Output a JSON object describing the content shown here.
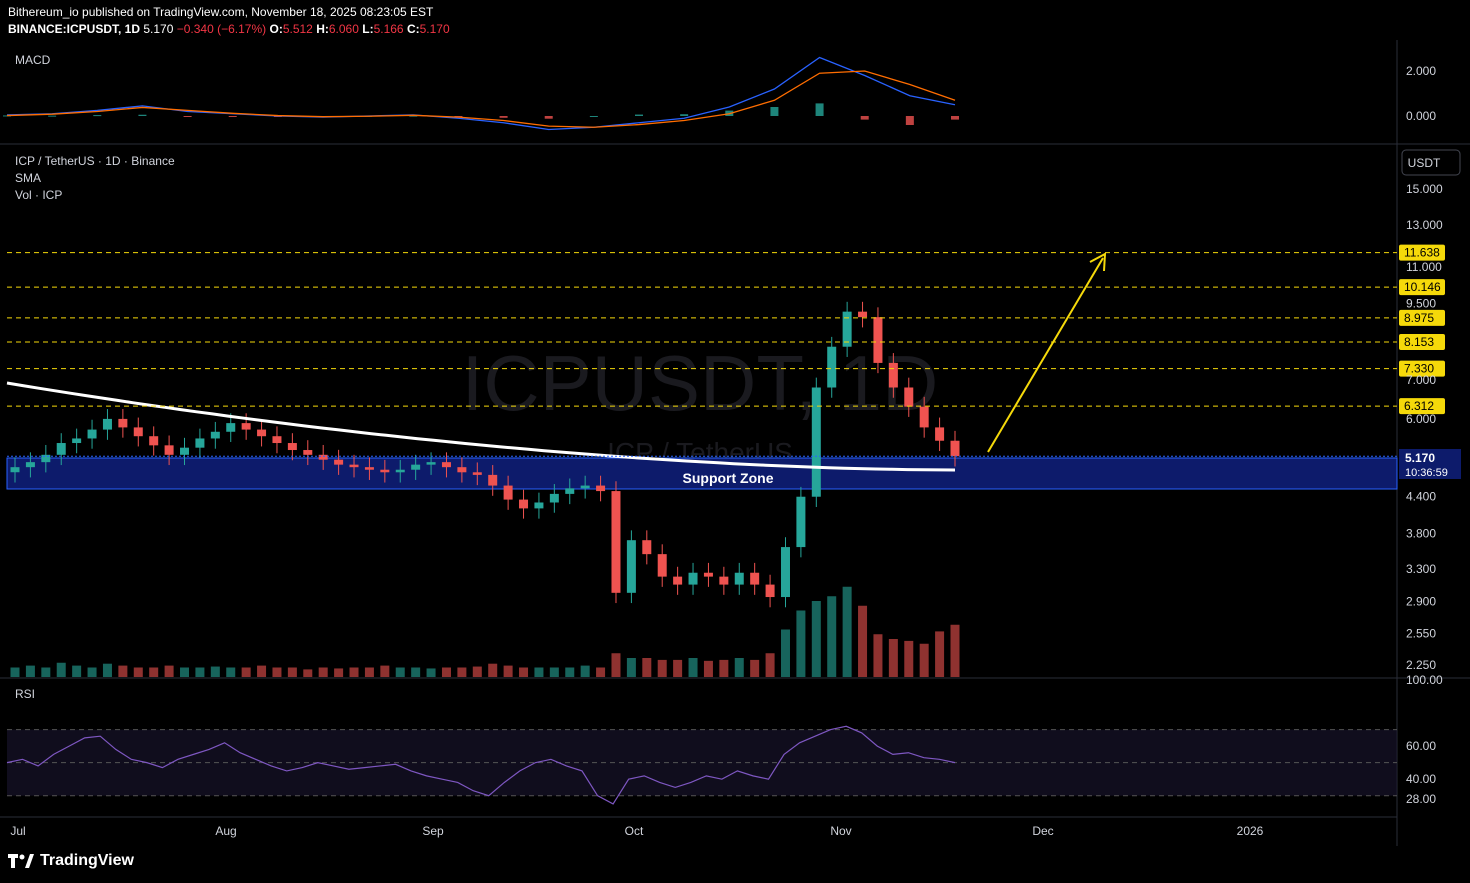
{
  "header": {
    "line1": "Bithereum_io published on TradingView.com, November 18, 2025 08:23:05 EST",
    "symbol": "BINANCE:ICPUSDT, 1D",
    "last": "5.170",
    "change": "−0.340 (−6.17%)",
    "o_label": "O:",
    "o": "5.512",
    "h_label": "H:",
    "h": "6.060",
    "l_label": "L:",
    "l": "5.166",
    "c_label": "C:",
    "c": "5.170"
  },
  "panes": {
    "macd_label": "MACD",
    "price_title": "ICP / TetherUS · 1D · Binance",
    "sma_label": "SMA",
    "vol_label": "Vol · ICP",
    "rsi_label": "RSI",
    "currency_badge": "USDT"
  },
  "watermark": {
    "main": "ICPUSDT, 1D",
    "sub": "ICP / TetherUS"
  },
  "annotations": {
    "support_zone": "Support Zone",
    "current_price": "5.170",
    "countdown": "10:36:59"
  },
  "brand": {
    "name": "TradingView"
  },
  "colors": {
    "up": "#26a69a",
    "down": "#ef5350",
    "sma": "#ffffff",
    "zone": "#0d1b6b",
    "target_line": "#f5d90a",
    "macd_line": "#2962ff",
    "signal_line": "#ff6d00",
    "rsi_line": "#7e57c2"
  },
  "chart_data": [
    {
      "type": "line",
      "name": "MACD",
      "y_ticks": [
        "2.000",
        "0.000"
      ],
      "macd": [
        0.05,
        0.1,
        0.25,
        0.45,
        0.2,
        0.1,
        0.0,
        -0.05,
        0.0,
        0.05,
        -0.1,
        -0.3,
        -0.6,
        -0.5,
        -0.3,
        -0.1,
        0.4,
        1.2,
        2.6,
        1.8,
        0.9,
        0.5
      ],
      "signal": [
        0.02,
        0.08,
        0.2,
        0.38,
        0.25,
        0.12,
        0.02,
        -0.03,
        -0.01,
        0.03,
        -0.05,
        -0.2,
        -0.45,
        -0.5,
        -0.38,
        -0.2,
        0.1,
        0.7,
        1.9,
        2.0,
        1.4,
        0.7
      ]
    },
    {
      "type": "candlestick",
      "title": "ICP / TetherUS · 1D · Binance",
      "x_ticks": [
        "Jul",
        "Aug",
        "Sep",
        "Oct",
        "Nov",
        "Dec",
        "2026"
      ],
      "y_ticks": [
        "15.000",
        "13.000",
        "11.000",
        "9.500",
        "7.000",
        "6.000",
        "4.400",
        "3.800",
        "3.300",
        "2.900",
        "2.550",
        "2.250"
      ],
      "levels": [
        "11.638",
        "10.146",
        "8.975",
        "8.153",
        "7.330",
        "6.312"
      ],
      "support_zone": [
        4.7,
        5.25
      ],
      "last_price": 5.17,
      "closes": [
        4.95,
        5.05,
        5.2,
        5.45,
        5.55,
        5.75,
        6.0,
        5.8,
        5.6,
        5.4,
        5.2,
        5.35,
        5.55,
        5.7,
        5.9,
        5.75,
        5.6,
        5.45,
        5.3,
        5.2,
        5.1,
        5.0,
        4.95,
        4.9,
        4.85,
        4.9,
        5.0,
        5.05,
        4.95,
        4.85,
        4.8,
        4.6,
        4.35,
        4.2,
        4.3,
        4.45,
        4.55,
        4.6,
        4.5,
        3.0,
        3.7,
        3.5,
        3.2,
        3.1,
        3.25,
        3.2,
        3.1,
        3.25,
        3.1,
        2.95,
        3.6,
        4.4,
        6.8,
        8.0,
        9.2,
        9.0,
        7.5,
        6.8,
        6.3,
        5.8,
        5.5,
        5.17
      ],
      "volume_relative": [
        0.1,
        0.12,
        0.1,
        0.15,
        0.12,
        0.1,
        0.14,
        0.12,
        0.1,
        0.1,
        0.12,
        0.1,
        0.1,
        0.11,
        0.1,
        0.1,
        0.12,
        0.1,
        0.1,
        0.08,
        0.1,
        0.09,
        0.1,
        0.1,
        0.12,
        0.1,
        0.1,
        0.09,
        0.1,
        0.1,
        0.11,
        0.14,
        0.12,
        0.1,
        0.1,
        0.1,
        0.1,
        0.12,
        0.1,
        0.25,
        0.2,
        0.2,
        0.18,
        0.18,
        0.2,
        0.17,
        0.18,
        0.2,
        0.18,
        0.25,
        0.5,
        0.7,
        0.8,
        0.85,
        0.95,
        0.75,
        0.45,
        0.4,
        0.38,
        0.35,
        0.48,
        0.55
      ]
    },
    {
      "type": "line",
      "name": "RSI",
      "y_ticks": [
        "100.00",
        "60.00",
        "40.00",
        "28.00"
      ],
      "values": [
        50,
        52,
        48,
        55,
        60,
        65,
        66,
        58,
        52,
        50,
        47,
        52,
        55,
        58,
        62,
        56,
        52,
        48,
        45,
        47,
        50,
        48,
        46,
        47,
        48,
        49,
        45,
        42,
        40,
        38,
        33,
        30,
        38,
        45,
        50,
        52,
        48,
        45,
        30,
        25,
        40,
        42,
        38,
        35,
        38,
        42,
        40,
        45,
        42,
        40,
        55,
        62,
        66,
        70,
        72,
        68,
        60,
        55,
        56,
        53,
        52,
        50
      ]
    }
  ]
}
